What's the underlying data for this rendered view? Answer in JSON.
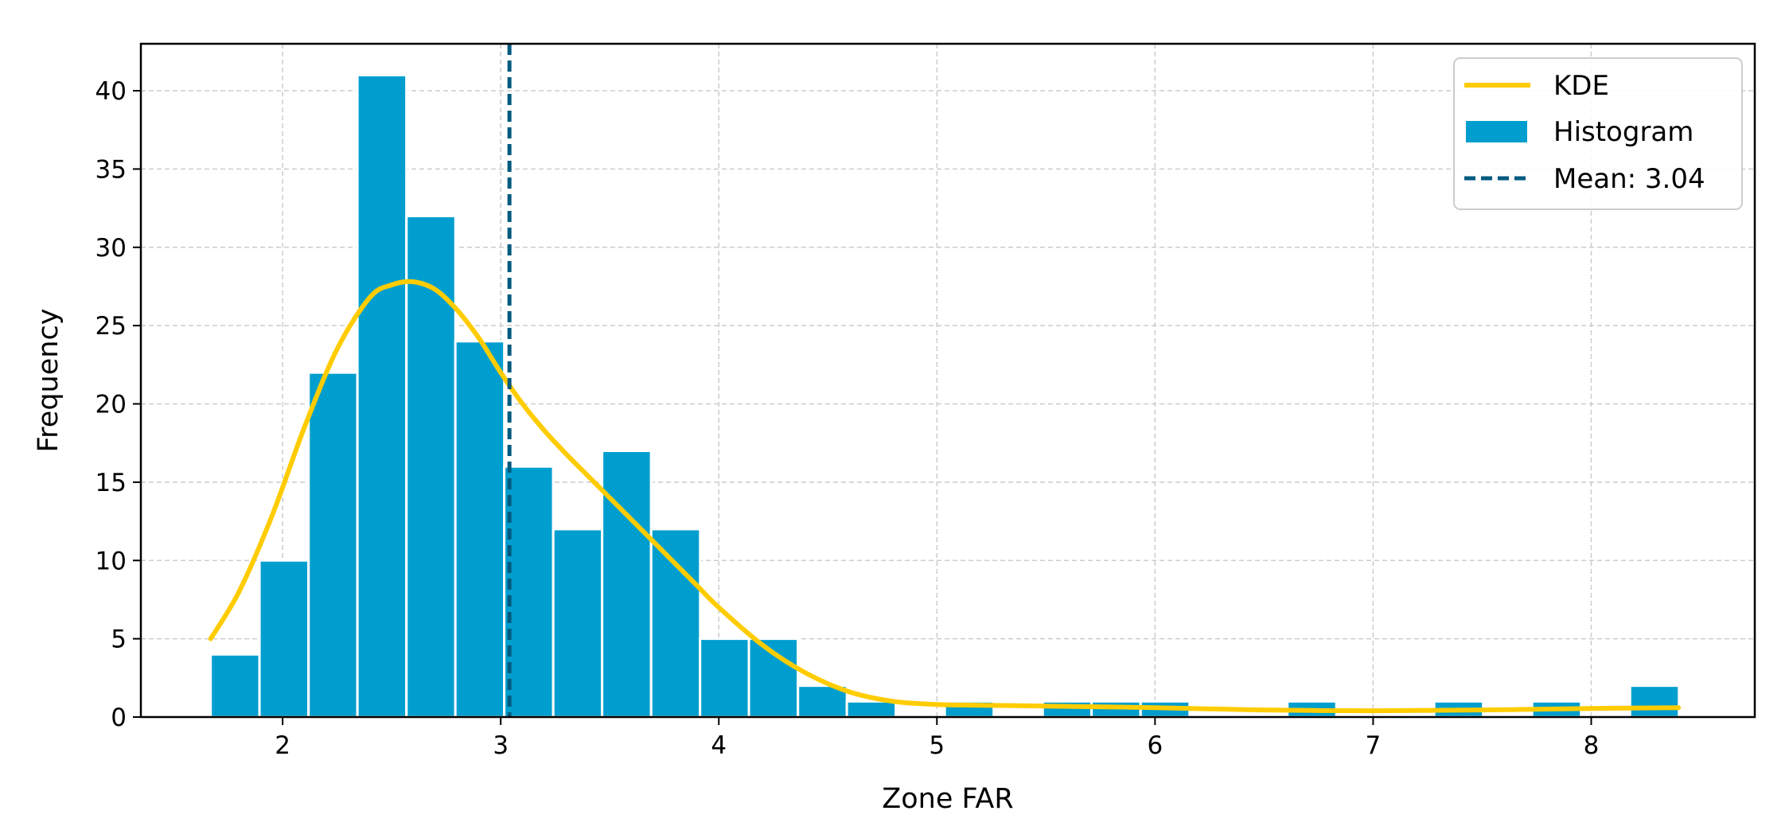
{
  "chart_data": {
    "type": "bar",
    "title": "",
    "xlabel": "Zone FAR",
    "ylabel": "Frequency",
    "xlim": [
      1.35,
      8.75
    ],
    "ylim": [
      0,
      43
    ],
    "grid": true,
    "legend_position": "top-right",
    "x_ticks": [
      2,
      3,
      4,
      5,
      6,
      7,
      8
    ],
    "y_ticks": [
      0,
      5,
      10,
      15,
      20,
      25,
      30,
      35,
      40
    ],
    "bin_width": 0.2244,
    "bins": [
      {
        "x0": 1.67,
        "count": 4
      },
      {
        "x0": 1.894,
        "count": 10
      },
      {
        "x0": 2.119,
        "count": 22
      },
      {
        "x0": 2.343,
        "count": 41
      },
      {
        "x0": 2.568,
        "count": 32
      },
      {
        "x0": 2.792,
        "count": 24
      },
      {
        "x0": 3.016,
        "count": 16
      },
      {
        "x0": 3.241,
        "count": 12
      },
      {
        "x0": 3.465,
        "count": 17
      },
      {
        "x0": 3.69,
        "count": 12
      },
      {
        "x0": 3.914,
        "count": 5
      },
      {
        "x0": 4.138,
        "count": 5
      },
      {
        "x0": 4.363,
        "count": 2
      },
      {
        "x0": 4.587,
        "count": 1
      },
      {
        "x0": 4.812,
        "count": 0
      },
      {
        "x0": 5.036,
        "count": 1
      },
      {
        "x0": 5.26,
        "count": 0
      },
      {
        "x0": 5.485,
        "count": 1
      },
      {
        "x0": 5.709,
        "count": 1
      },
      {
        "x0": 5.934,
        "count": 1
      },
      {
        "x0": 6.158,
        "count": 0
      },
      {
        "x0": 6.382,
        "count": 0
      },
      {
        "x0": 6.607,
        "count": 1
      },
      {
        "x0": 6.831,
        "count": 0
      },
      {
        "x0": 7.056,
        "count": 0
      },
      {
        "x0": 7.28,
        "count": 1
      },
      {
        "x0": 7.504,
        "count": 0
      },
      {
        "x0": 7.729,
        "count": 1
      },
      {
        "x0": 7.953,
        "count": 0
      },
      {
        "x0": 8.178,
        "count": 2
      }
    ],
    "kde": {
      "name": "KDE",
      "x": [
        1.67,
        1.8,
        1.95,
        2.1,
        2.25,
        2.4,
        2.5,
        2.6,
        2.7,
        2.8,
        2.9,
        3.0,
        3.1,
        3.2,
        3.3,
        3.4,
        3.5,
        3.6,
        3.7,
        3.8,
        3.9,
        4.0,
        4.2,
        4.4,
        4.6,
        4.8,
        5.0,
        5.2,
        5.5,
        6.0,
        6.5,
        7.0,
        7.5,
        8.0,
        8.4
      ],
      "y": [
        5.0,
        8.0,
        12.8,
        18.5,
        23.5,
        26.8,
        27.6,
        27.8,
        27.3,
        26.0,
        24.2,
        22.0,
        20.0,
        18.3,
        16.8,
        15.4,
        14.0,
        12.6,
        11.2,
        9.8,
        8.4,
        7.0,
        4.6,
        2.8,
        1.6,
        1.0,
        0.8,
        0.75,
        0.7,
        0.6,
        0.45,
        0.4,
        0.45,
        0.55,
        0.6
      ],
      "color": "#FFCC00"
    },
    "mean": {
      "value": 3.04,
      "label": "Mean: 3.04",
      "color": "#005A7F"
    },
    "histogram_color": "#009ECE",
    "legend": [
      {
        "label": "KDE",
        "kind": "line",
        "color": "#FFCC00"
      },
      {
        "label": "Histogram",
        "kind": "patch",
        "color": "#009ECE"
      },
      {
        "label": "Mean: 3.04",
        "kind": "dashed",
        "color": "#005A7F"
      }
    ]
  }
}
